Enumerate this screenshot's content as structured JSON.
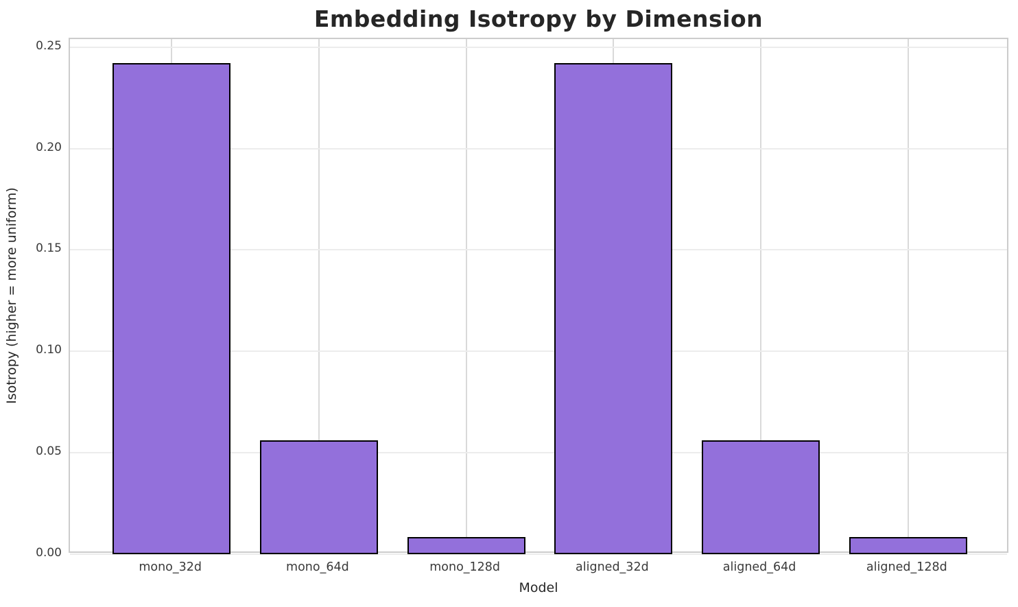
{
  "chart_data": {
    "type": "bar",
    "title": "Embedding Isotropy by Dimension",
    "xlabel": "Model",
    "ylabel": "Isotropy (higher = more uniform)",
    "categories": [
      "mono_32d",
      "mono_64d",
      "mono_128d",
      "aligned_32d",
      "aligned_64d",
      "aligned_128d"
    ],
    "values": [
      0.242,
      0.056,
      0.0085,
      0.242,
      0.056,
      0.0085
    ],
    "ylim": [
      0,
      0.254
    ],
    "xlim": [
      -0.69,
      5.69
    ],
    "yticks": [
      0,
      0.05,
      0.1,
      0.15,
      0.2,
      0.25
    ],
    "ytick_labels": [
      "0.00",
      "0.05",
      "0.10",
      "0.15",
      "0.20",
      "0.25"
    ],
    "grid": true,
    "legend": "none",
    "bar_width_fraction": 0.8,
    "bar_color": "#9370DB",
    "bar_edge_color": "#000000"
  }
}
